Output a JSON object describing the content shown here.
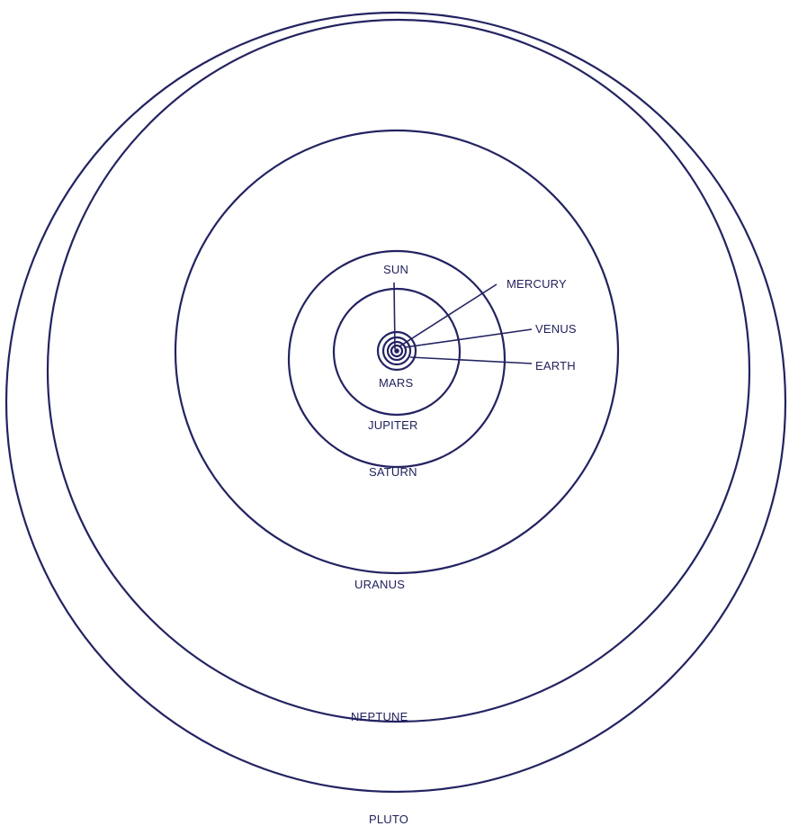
{
  "diagram": {
    "color": "#232362",
    "labels": {
      "sun": "SUN",
      "mercury": "MERCURY",
      "venus": "VENUS",
      "earth": "EARTH",
      "mars": "MARS",
      "jupiter": "JUPITER",
      "saturn": "SATURN",
      "uranus": "URANUS",
      "neptune": "NEPTUNE",
      "pluto": "PLUTO"
    }
  }
}
